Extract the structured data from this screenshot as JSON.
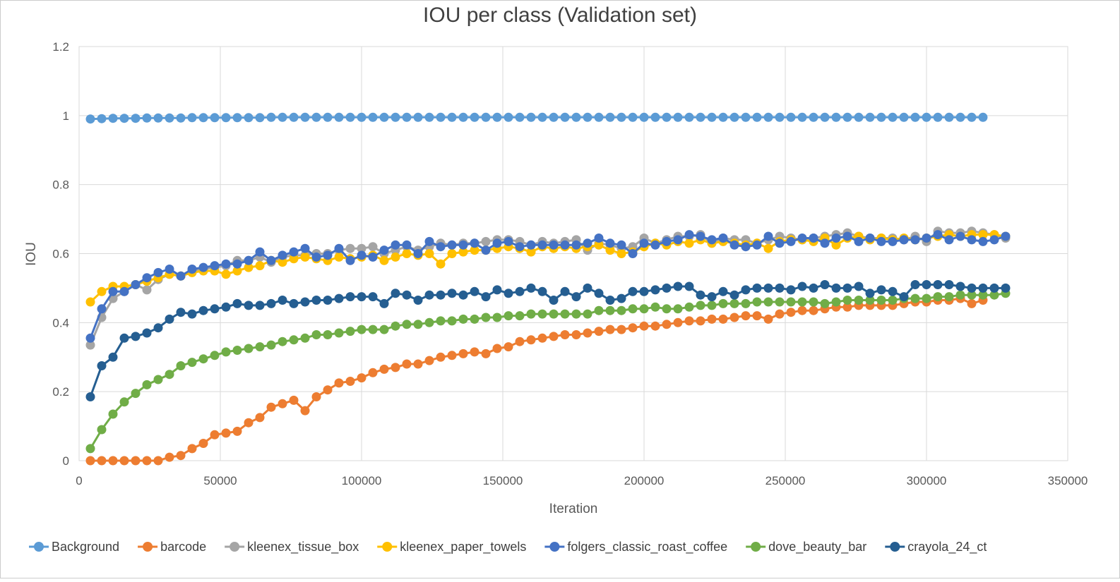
{
  "chart_data": {
    "type": "line",
    "title": "IOU per class (Validation set)",
    "xlabel": "Iteration",
    "ylabel": "IOU",
    "xlim": [
      0,
      350000
    ],
    "ylim": [
      0,
      1.2
    ],
    "x_ticks": [
      0,
      50000,
      100000,
      150000,
      200000,
      250000,
      300000,
      350000
    ],
    "y_ticks": [
      0,
      0.2,
      0.4,
      0.6,
      0.8,
      1,
      1.2
    ],
    "y_tick_labels": [
      "0",
      "0.2",
      "0.4",
      "0.6",
      "0.8",
      "1",
      "1.2"
    ],
    "grid": true,
    "legend_position": "bottom",
    "x_start": 4000,
    "x_step": 4000,
    "series": [
      {
        "name": "Background",
        "color": "#5b9bd5",
        "values": [
          0.99,
          0.991,
          0.992,
          0.992,
          0.992,
          0.993,
          0.993,
          0.993,
          0.993,
          0.994,
          0.994,
          0.994,
          0.994,
          0.994,
          0.994,
          0.994,
          0.995,
          0.995,
          0.995,
          0.995,
          0.995,
          0.995,
          0.995,
          0.995,
          0.995,
          0.995,
          0.995,
          0.995,
          0.995,
          0.995,
          0.995,
          0.995,
          0.995,
          0.995,
          0.995,
          0.995,
          0.995,
          0.995,
          0.995,
          0.995,
          0.995,
          0.995,
          0.995,
          0.995,
          0.995,
          0.995,
          0.995,
          0.995,
          0.995,
          0.995,
          0.995,
          0.995,
          0.995,
          0.995,
          0.995,
          0.995,
          0.995,
          0.995,
          0.995,
          0.995,
          0.995,
          0.995,
          0.995,
          0.995,
          0.995,
          0.995,
          0.995,
          0.995,
          0.995,
          0.995,
          0.995,
          0.995,
          0.995,
          0.995,
          0.995,
          0.995,
          0.995,
          0.995,
          0.995,
          0.995
        ]
      },
      {
        "name": "barcode",
        "color": "#ed7d31",
        "values": [
          0,
          0,
          0,
          0,
          0,
          0,
          0,
          0.01,
          0.015,
          0.035,
          0.05,
          0.075,
          0.08,
          0.085,
          0.11,
          0.125,
          0.155,
          0.165,
          0.175,
          0.145,
          0.185,
          0.205,
          0.225,
          0.23,
          0.24,
          0.255,
          0.265,
          0.27,
          0.28,
          0.28,
          0.29,
          0.3,
          0.305,
          0.31,
          0.315,
          0.31,
          0.325,
          0.33,
          0.345,
          0.35,
          0.355,
          0.36,
          0.365,
          0.365,
          0.37,
          0.375,
          0.38,
          0.38,
          0.385,
          0.39,
          0.39,
          0.395,
          0.4,
          0.405,
          0.405,
          0.41,
          0.41,
          0.415,
          0.42,
          0.42,
          0.41,
          0.425,
          0.43,
          0.435,
          0.435,
          0.44,
          0.445,
          0.445,
          0.45,
          0.45,
          0.45,
          0.45,
          0.455,
          0.46,
          0.46,
          0.465,
          0.465,
          0.47,
          0.455,
          0.465
        ]
      },
      {
        "name": "kleenex_tissue_box",
        "color": "#a5a5a5",
        "values": [
          0.335,
          0.415,
          0.47,
          0.49,
          0.51,
          0.495,
          0.525,
          0.54,
          0.535,
          0.55,
          0.555,
          0.56,
          0.565,
          0.58,
          0.58,
          0.59,
          0.575,
          0.59,
          0.595,
          0.595,
          0.6,
          0.6,
          0.61,
          0.615,
          0.615,
          0.62,
          0.6,
          0.61,
          0.62,
          0.61,
          0.62,
          0.63,
          0.625,
          0.63,
          0.63,
          0.635,
          0.64,
          0.64,
          0.635,
          0.625,
          0.635,
          0.63,
          0.635,
          0.64,
          0.61,
          0.63,
          0.625,
          0.615,
          0.62,
          0.645,
          0.63,
          0.64,
          0.65,
          0.65,
          0.655,
          0.63,
          0.645,
          0.64,
          0.64,
          0.63,
          0.64,
          0.65,
          0.645,
          0.64,
          0.645,
          0.65,
          0.655,
          0.66,
          0.65,
          0.645,
          0.645,
          0.645,
          0.64,
          0.65,
          0.635,
          0.665,
          0.66,
          0.66,
          0.665,
          0.66,
          0.655,
          0.645
        ]
      },
      {
        "name": "kleenex_paper_towels",
        "color": "#ffc000",
        "values": [
          0.46,
          0.49,
          0.505,
          0.505,
          0.51,
          0.52,
          0.53,
          0.54,
          0.535,
          0.545,
          0.55,
          0.55,
          0.54,
          0.55,
          0.56,
          0.565,
          0.58,
          0.575,
          0.585,
          0.59,
          0.585,
          0.58,
          0.59,
          0.585,
          0.59,
          0.595,
          0.58,
          0.59,
          0.6,
          0.595,
          0.6,
          0.57,
          0.6,
          0.605,
          0.61,
          0.61,
          0.615,
          0.62,
          0.615,
          0.605,
          0.62,
          0.615,
          0.62,
          0.615,
          0.62,
          0.625,
          0.61,
          0.6,
          0.605,
          0.62,
          0.63,
          0.625,
          0.635,
          0.63,
          0.64,
          0.63,
          0.635,
          0.63,
          0.625,
          0.63,
          0.615,
          0.635,
          0.64,
          0.64,
          0.635,
          0.645,
          0.625,
          0.645,
          0.65,
          0.64,
          0.645,
          0.64,
          0.645,
          0.64,
          0.645,
          0.65,
          0.655,
          0.65,
          0.655,
          0.655,
          0.655,
          0.65
        ]
      },
      {
        "name": "folgers_classic_roast_coffee",
        "color": "#4472c4",
        "values": [
          0.355,
          0.44,
          0.49,
          0.49,
          0.51,
          0.53,
          0.545,
          0.555,
          0.535,
          0.555,
          0.56,
          0.565,
          0.57,
          0.57,
          0.58,
          0.605,
          0.58,
          0.595,
          0.605,
          0.615,
          0.59,
          0.595,
          0.615,
          0.58,
          0.595,
          0.59,
          0.61,
          0.625,
          0.625,
          0.6,
          0.635,
          0.62,
          0.625,
          0.625,
          0.63,
          0.61,
          0.63,
          0.635,
          0.62,
          0.625,
          0.625,
          0.625,
          0.625,
          0.625,
          0.63,
          0.645,
          0.63,
          0.625,
          0.6,
          0.63,
          0.625,
          0.635,
          0.64,
          0.655,
          0.65,
          0.64,
          0.645,
          0.625,
          0.62,
          0.625,
          0.65,
          0.63,
          0.635,
          0.645,
          0.645,
          0.63,
          0.645,
          0.65,
          0.635,
          0.645,
          0.635,
          0.635,
          0.64,
          0.64,
          0.645,
          0.655,
          0.64,
          0.65,
          0.64,
          0.635,
          0.64,
          0.65
        ]
      },
      {
        "name": "dove_beauty_bar",
        "color": "#70ad47",
        "values": [
          0.035,
          0.09,
          0.135,
          0.17,
          0.195,
          0.22,
          0.235,
          0.25,
          0.275,
          0.285,
          0.295,
          0.305,
          0.315,
          0.32,
          0.325,
          0.33,
          0.335,
          0.345,
          0.35,
          0.355,
          0.365,
          0.365,
          0.37,
          0.375,
          0.38,
          0.38,
          0.38,
          0.39,
          0.395,
          0.395,
          0.4,
          0.405,
          0.405,
          0.41,
          0.41,
          0.415,
          0.415,
          0.42,
          0.42,
          0.425,
          0.425,
          0.425,
          0.425,
          0.425,
          0.425,
          0.435,
          0.435,
          0.435,
          0.44,
          0.44,
          0.445,
          0.44,
          0.44,
          0.445,
          0.45,
          0.45,
          0.455,
          0.455,
          0.455,
          0.46,
          0.46,
          0.46,
          0.46,
          0.46,
          0.46,
          0.455,
          0.46,
          0.465,
          0.465,
          0.465,
          0.465,
          0.465,
          0.47,
          0.47,
          0.47,
          0.475,
          0.475,
          0.48,
          0.48,
          0.48,
          0.48,
          0.485
        ]
      },
      {
        "name": "crayola_24_ct",
        "color": "#255e91",
        "values": [
          0.185,
          0.275,
          0.3,
          0.355,
          0.36,
          0.37,
          0.385,
          0.41,
          0.43,
          0.425,
          0.435,
          0.44,
          0.445,
          0.455,
          0.45,
          0.45,
          0.455,
          0.465,
          0.455,
          0.46,
          0.465,
          0.465,
          0.47,
          0.475,
          0.475,
          0.475,
          0.455,
          0.485,
          0.48,
          0.465,
          0.48,
          0.48,
          0.485,
          0.48,
          0.49,
          0.475,
          0.495,
          0.485,
          0.49,
          0.5,
          0.49,
          0.465,
          0.49,
          0.475,
          0.5,
          0.485,
          0.465,
          0.47,
          0.49,
          0.49,
          0.495,
          0.5,
          0.505,
          0.505,
          0.48,
          0.475,
          0.49,
          0.48,
          0.495,
          0.5,
          0.5,
          0.5,
          0.495,
          0.505,
          0.5,
          0.51,
          0.5,
          0.5,
          0.505,
          0.485,
          0.495,
          0.49,
          0.475,
          0.51,
          0.51,
          0.51,
          0.51,
          0.505,
          0.5,
          0.5,
          0.5,
          0.5
        ]
      }
    ]
  }
}
